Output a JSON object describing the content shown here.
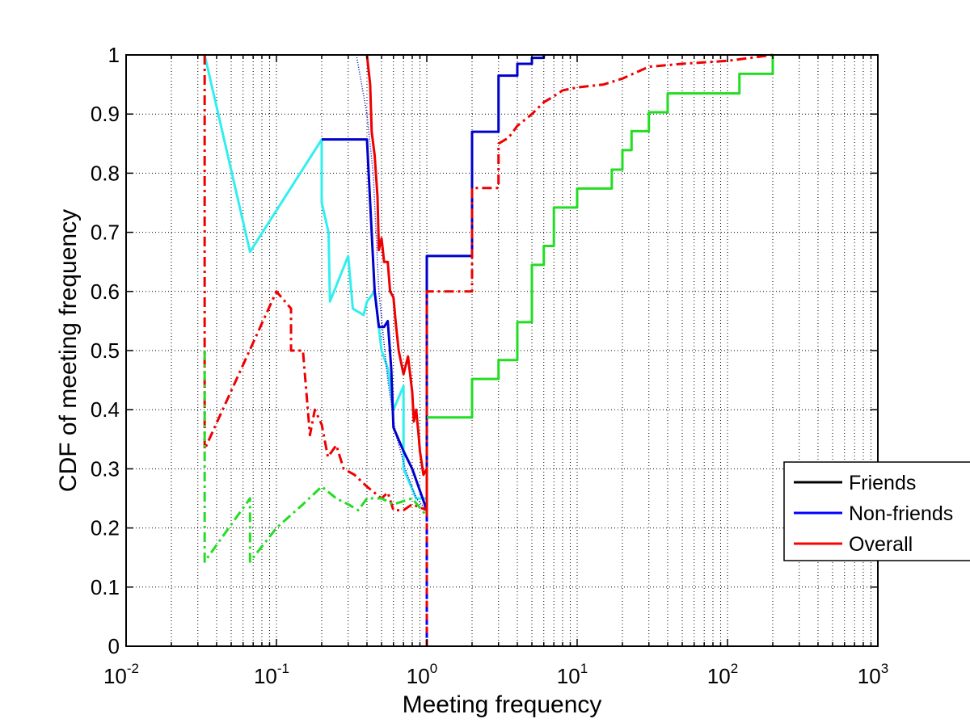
{
  "chart_data": {
    "type": "line",
    "xlabel": "Meeting frequency",
    "ylabel": "CDF of meeting frequency",
    "xscale": "log",
    "xlim": [
      0.01,
      1000
    ],
    "ylim": [
      0,
      1
    ],
    "grid": true,
    "legend_position": "right",
    "x_tick_labels": [
      {
        "base": "10",
        "exp": "-2",
        "value": 0.01
      },
      {
        "base": "10",
        "exp": "-1",
        "value": 0.1
      },
      {
        "base": "10",
        "exp": "0",
        "value": 1
      },
      {
        "base": "10",
        "exp": "1",
        "value": 10
      },
      {
        "base": "10",
        "exp": "2",
        "value": 100
      },
      {
        "base": "10",
        "exp": "3",
        "value": 1000
      }
    ],
    "y_tick_labels": [
      "0",
      "0.1",
      "0.2",
      "0.3",
      "0.4",
      "0.5",
      "0.6",
      "0.7",
      "0.8",
      "0.9",
      "1"
    ],
    "y_ticks": [
      0,
      0.1,
      0.2,
      0.3,
      0.4,
      0.5,
      0.6,
      0.7,
      0.8,
      0.9,
      1
    ],
    "legend": [
      {
        "label": "Friends",
        "color": "#000000"
      },
      {
        "label": "Non-friends",
        "color": "#0000ff"
      },
      {
        "label": "Overall",
        "color": "#ff0000"
      }
    ],
    "series": [
      {
        "color": "#33eeee",
        "style": "solid",
        "width": 3,
        "points": [
          [
            0.0333,
            1
          ],
          [
            0.0667,
            0.667
          ],
          [
            0.2,
            0.857
          ],
          [
            0.2,
            0.75
          ],
          [
            0.222,
            0.7
          ],
          [
            0.227,
            0.583
          ],
          [
            0.3,
            0.66
          ],
          [
            0.322,
            0.571
          ],
          [
            0.38,
            0.56
          ],
          [
            0.4,
            0.583
          ],
          [
            0.45,
            0.6
          ],
          [
            0.5,
            0.5
          ],
          [
            0.55,
            0.47
          ],
          [
            0.6,
            0.4
          ],
          [
            0.7,
            0.44
          ],
          [
            0.7,
            0.3
          ],
          [
            0.85,
            0.25
          ],
          [
            1,
            0.25
          ]
        ]
      },
      {
        "color": "#0000cc",
        "style": "solid",
        "width": 3,
        "points": [
          [
            0.2,
            0.857
          ],
          [
            0.4,
            0.857
          ],
          [
            0.45,
            0.6
          ],
          [
            0.48,
            0.54
          ],
          [
            0.52,
            0.54
          ],
          [
            0.55,
            0.55
          ],
          [
            0.58,
            0.47
          ],
          [
            0.6,
            0.37
          ],
          [
            0.7,
            0.33
          ],
          [
            0.8,
            0.3
          ],
          [
            1,
            0.23
          ],
          [
            1,
            0.66
          ],
          [
            2,
            0.66
          ],
          [
            2,
            0.87
          ],
          [
            3,
            0.87
          ],
          [
            3,
            0.965
          ],
          [
            4,
            0.965
          ],
          [
            4,
            0.985
          ],
          [
            5,
            0.985
          ],
          [
            5,
            0.995
          ],
          [
            6,
            0.995
          ],
          [
            6,
            1
          ]
        ]
      },
      {
        "color": "#0000cc",
        "style": "dotted",
        "width": 1.5,
        "points": [
          [
            0.34,
            1
          ],
          [
            0.4,
            0.9
          ],
          [
            0.44,
            0.8
          ],
          [
            0.48,
            0.6
          ],
          [
            0.55,
            0.45
          ],
          [
            0.62,
            0.36
          ],
          [
            0.72,
            0.3
          ],
          [
            0.85,
            0.25
          ],
          [
            1,
            0.23
          ]
        ]
      },
      {
        "color": "#ee0000",
        "style": "solid",
        "width": 3,
        "points": [
          [
            0.4,
            1
          ],
          [
            0.42,
            0.95
          ],
          [
            0.43,
            0.87
          ],
          [
            0.45,
            0.83
          ],
          [
            0.47,
            0.76
          ],
          [
            0.48,
            0.67
          ],
          [
            0.5,
            0.69
          ],
          [
            0.52,
            0.65
          ],
          [
            0.55,
            0.65
          ],
          [
            0.57,
            0.6
          ],
          [
            0.6,
            0.59
          ],
          [
            0.62,
            0.55
          ],
          [
            0.65,
            0.5
          ],
          [
            0.7,
            0.46
          ],
          [
            0.75,
            0.49
          ],
          [
            0.8,
            0.43
          ],
          [
            0.82,
            0.38
          ],
          [
            0.85,
            0.4
          ],
          [
            0.88,
            0.36
          ],
          [
            0.9,
            0.33
          ],
          [
            0.95,
            0.29
          ],
          [
            1,
            0.3
          ],
          [
            1,
            0.23
          ]
        ]
      },
      {
        "color": "#ee0000",
        "style": "dashdot",
        "width": 3,
        "points": [
          [
            0.0333,
            1
          ],
          [
            0.0333,
            0.333
          ],
          [
            0.1,
            0.6
          ],
          [
            0.125,
            0.571
          ],
          [
            0.125,
            0.5
          ],
          [
            0.15,
            0.5
          ],
          [
            0.167,
            0.357
          ],
          [
            0.18,
            0.4
          ],
          [
            0.2,
            0.375
          ],
          [
            0.22,
            0.32
          ],
          [
            0.25,
            0.34
          ],
          [
            0.28,
            0.3
          ],
          [
            0.33,
            0.29
          ],
          [
            0.4,
            0.27
          ],
          [
            0.5,
            0.25
          ],
          [
            0.55,
            0.26
          ],
          [
            0.6,
            0.23
          ],
          [
            0.7,
            0.23
          ],
          [
            0.8,
            0.24
          ],
          [
            1,
            0.23
          ],
          [
            1,
            0.6
          ],
          [
            2,
            0.6
          ],
          [
            2,
            0.775
          ],
          [
            3,
            0.775
          ],
          [
            3,
            0.85
          ],
          [
            3.5,
            0.86
          ],
          [
            4,
            0.88
          ],
          [
            5,
            0.9
          ],
          [
            6,
            0.92
          ],
          [
            7,
            0.93
          ],
          [
            8,
            0.94
          ],
          [
            10,
            0.945
          ],
          [
            15,
            0.95
          ],
          [
            20,
            0.96
          ],
          [
            30,
            0.98
          ],
          [
            50,
            0.985
          ],
          [
            100,
            0.99
          ],
          [
            200,
            1
          ]
        ]
      },
      {
        "color": "#22dd22",
        "style": "dashdot",
        "width": 3,
        "points": [
          [
            0.0333,
            0.5
          ],
          [
            0.0333,
            0.143
          ],
          [
            0.0667,
            0.25
          ],
          [
            0.0667,
            0.143
          ],
          [
            0.1,
            0.2
          ],
          [
            0.15,
            0.24
          ],
          [
            0.2,
            0.27
          ],
          [
            0.25,
            0.25
          ],
          [
            0.3,
            0.24
          ],
          [
            0.35,
            0.23
          ],
          [
            0.4,
            0.25
          ],
          [
            0.5,
            0.25
          ],
          [
            0.6,
            0.24
          ],
          [
            0.8,
            0.25
          ],
          [
            1,
            0.22
          ]
        ]
      },
      {
        "color": "#22dd22",
        "style": "solid",
        "width": 3,
        "points": [
          [
            1,
            0.387
          ],
          [
            2,
            0.387
          ],
          [
            2,
            0.452
          ],
          [
            3,
            0.452
          ],
          [
            3,
            0.484
          ],
          [
            4,
            0.484
          ],
          [
            4,
            0.548
          ],
          [
            5,
            0.548
          ],
          [
            5,
            0.645
          ],
          [
            6,
            0.645
          ],
          [
            6,
            0.677
          ],
          [
            7,
            0.677
          ],
          [
            7,
            0.742
          ],
          [
            10,
            0.742
          ],
          [
            10,
            0.774
          ],
          [
            17,
            0.774
          ],
          [
            17,
            0.806
          ],
          [
            20,
            0.806
          ],
          [
            20,
            0.839
          ],
          [
            23,
            0.839
          ],
          [
            23,
            0.871
          ],
          [
            30,
            0.871
          ],
          [
            30,
            0.903
          ],
          [
            40,
            0.903
          ],
          [
            40,
            0.935
          ],
          [
            120,
            0.935
          ],
          [
            120,
            0.968
          ],
          [
            200,
            0.968
          ],
          [
            200,
            1
          ]
        ]
      },
      {
        "color": "#ee0000",
        "style": "dashed-vline",
        "width": 3,
        "points": [
          [
            1,
            0.23
          ],
          [
            1,
            0
          ]
        ]
      },
      {
        "color": "#0000ff",
        "style": "dashed-vline-overlay",
        "width": 3,
        "points": [
          [
            1,
            0.23
          ],
          [
            1,
            0
          ]
        ]
      }
    ]
  }
}
